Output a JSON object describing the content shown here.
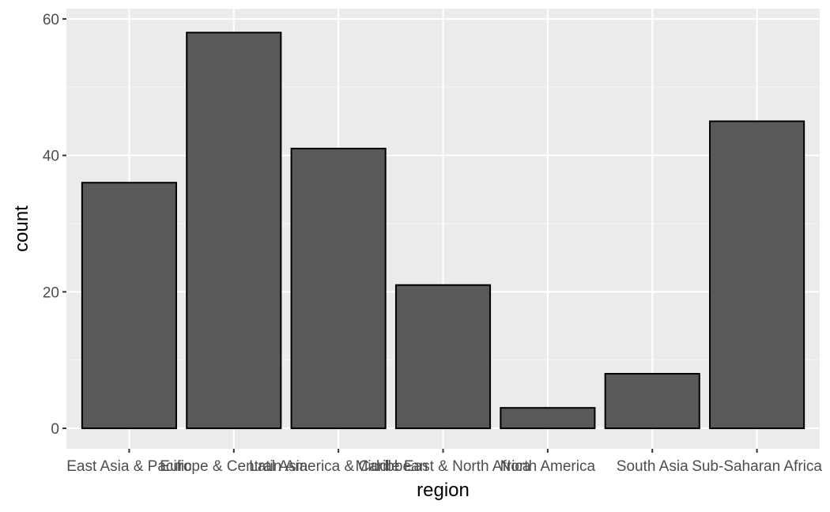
{
  "chart_data": {
    "type": "bar",
    "title": "",
    "xlabel": "region",
    "ylabel": "count",
    "categories": [
      "East Asia & Pacific",
      "Europe & Central Asia",
      "Latin America & Caribbean",
      "Middle East & North Africa",
      "North America",
      "South Asia",
      "Sub-Saharan Africa"
    ],
    "values": [
      36,
      58,
      41,
      21,
      3,
      8,
      45
    ],
    "ylim": [
      -3,
      61.5
    ],
    "yticks": [
      0,
      20,
      40,
      60
    ],
    "grid": true,
    "colors": {
      "panel_background": "#ebebeb",
      "grid_major": "#ffffff",
      "grid_minor": "#f5f5f5",
      "bar_fill": "#595959",
      "bar_outline": "#000000",
      "tick_text": "#4d4d4d",
      "tick_mark": "#333333"
    }
  }
}
